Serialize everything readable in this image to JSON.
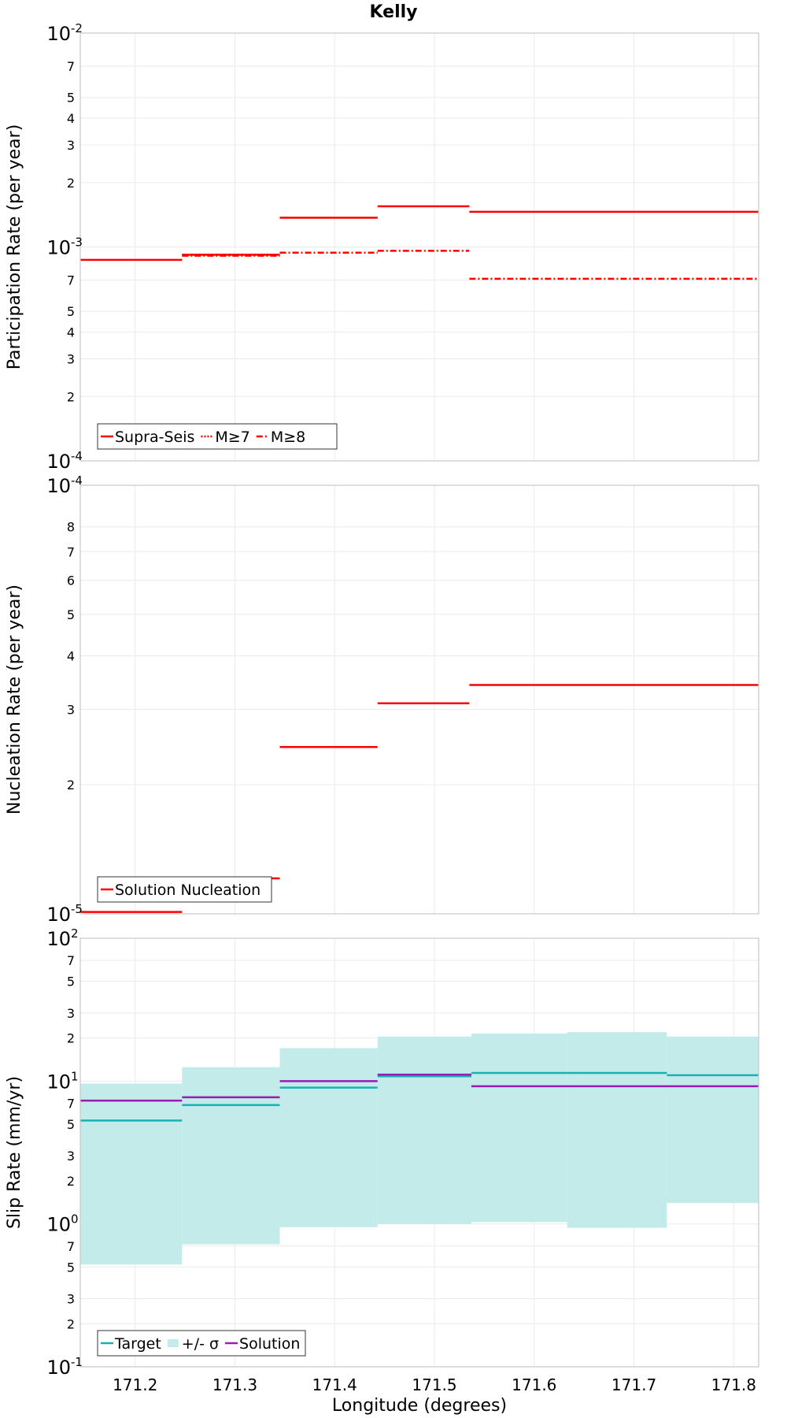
{
  "title": "Kelly",
  "x_axis": {
    "label": "Longitude (degrees)",
    "range": [
      171.145,
      171.825
    ],
    "ticks": [
      "171.2",
      "171.3",
      "171.4",
      "171.5",
      "171.6",
      "171.7",
      "171.8"
    ]
  },
  "chart_data": [
    {
      "type": "line",
      "name": "participation",
      "ylabel": "Participation Rate (per year)",
      "yscale": "log",
      "ylim": [
        0.0001,
        0.01
      ],
      "y_major_ticks": [
        {
          "mantissa": "10",
          "exp": "-4",
          "v": 0.0001
        },
        {
          "mantissa": "10",
          "exp": "-3",
          "v": 0.001
        },
        {
          "mantissa": "10",
          "exp": "-2",
          "v": 0.01
        }
      ],
      "y_minor_ticks": [
        {
          "label": "2",
          "v": 0.0002
        },
        {
          "label": "3",
          "v": 0.0003
        },
        {
          "label": "4",
          "v": 0.0004
        },
        {
          "label": "5",
          "v": 0.0005
        },
        {
          "label": "7",
          "v": 0.0007
        },
        {
          "label": "2",
          "v": 0.002
        },
        {
          "label": "3",
          "v": 0.003
        },
        {
          "label": "4",
          "v": 0.004
        },
        {
          "label": "5",
          "v": 0.005
        },
        {
          "label": "7",
          "v": 0.007
        }
      ],
      "legend_position": "bottom-left",
      "series": [
        {
          "name": "Supra-Seis",
          "style": "solid",
          "color": "#ff0000",
          "segments": [
            [
              171.145,
              171.247,
              0.00087
            ],
            [
              171.247,
              171.345,
              0.00092
            ],
            [
              171.345,
              171.443,
              0.00137
            ],
            [
              171.443,
              171.535,
              0.00155
            ],
            [
              171.535,
              171.825,
              0.00146
            ]
          ]
        },
        {
          "name": "M≥7",
          "style": "dotted",
          "color": "#ff0000",
          "segments": [
            [
              171.247,
              171.345,
              0.00092
            ],
            [
              171.345,
              171.443,
              0.00137
            ]
          ]
        },
        {
          "name": "M≥8",
          "style": "dashdot",
          "color": "#ff0000",
          "segments": [
            [
              171.247,
              171.345,
              0.00091
            ],
            [
              171.345,
              171.443,
              0.00094
            ],
            [
              171.443,
              171.535,
              0.00096
            ],
            [
              171.535,
              171.825,
              0.00071
            ]
          ]
        }
      ]
    },
    {
      "type": "line",
      "name": "nucleation",
      "ylabel": "Nucleation Rate (per year)",
      "yscale": "log",
      "ylim": [
        1e-05,
        0.0001
      ],
      "y_major_ticks": [
        {
          "mantissa": "10",
          "exp": "-5",
          "v": 1e-05
        },
        {
          "mantissa": "10",
          "exp": "-4",
          "v": 0.0001
        }
      ],
      "y_minor_ticks": [
        {
          "label": "2",
          "v": 2e-05
        },
        {
          "label": "3",
          "v": 3e-05
        },
        {
          "label": "4",
          "v": 4e-05
        },
        {
          "label": "5",
          "v": 5e-05
        },
        {
          "label": "6",
          "v": 6e-05
        },
        {
          "label": "7",
          "v": 7e-05
        },
        {
          "label": "8",
          "v": 8e-05
        }
      ],
      "legend_position": "bottom-left",
      "series": [
        {
          "name": "Solution Nucleation",
          "style": "solid",
          "color": "#ff0000",
          "segments": [
            [
              171.145,
              171.247,
              1.01e-05
            ],
            [
              171.247,
              171.345,
              1.21e-05
            ],
            [
              171.345,
              171.443,
              2.45e-05
            ],
            [
              171.443,
              171.535,
              3.1e-05
            ],
            [
              171.535,
              171.825,
              3.42e-05
            ]
          ]
        }
      ]
    },
    {
      "type": "line",
      "name": "slip",
      "ylabel": "Slip Rate (mm/yr)",
      "yscale": "log",
      "ylim": [
        0.1,
        100
      ],
      "y_major_ticks": [
        {
          "mantissa": "10",
          "exp": "-1",
          "v": 0.1
        },
        {
          "mantissa": "10",
          "exp": "0",
          "v": 1
        },
        {
          "mantissa": "10",
          "exp": "1",
          "v": 10
        },
        {
          "mantissa": "10",
          "exp": "2",
          "v": 100
        }
      ],
      "y_minor_ticks": [
        {
          "label": "2",
          "v": 0.2
        },
        {
          "label": "3",
          "v": 0.3
        },
        {
          "label": "5",
          "v": 0.5
        },
        {
          "label": "7",
          "v": 0.7
        },
        {
          "label": "2",
          "v": 2
        },
        {
          "label": "3",
          "v": 3
        },
        {
          "label": "5",
          "v": 5
        },
        {
          "label": "7",
          "v": 7
        },
        {
          "label": "2",
          "v": 20
        },
        {
          "label": "3",
          "v": 30
        },
        {
          "label": "5",
          "v": 50
        },
        {
          "label": "7",
          "v": 70
        }
      ],
      "legend_position": "bottom-left",
      "bands": [
        {
          "name": "+/- σ",
          "color": "#c2ebea",
          "segments": [
            [
              171.145,
              171.247,
              0.52,
              9.6
            ],
            [
              171.247,
              171.345,
              0.72,
              12.5
            ],
            [
              171.345,
              171.443,
              0.95,
              17.0
            ],
            [
              171.443,
              171.537,
              1.0,
              20.5
            ],
            [
              171.537,
              171.633,
              1.03,
              21.5
            ],
            [
              171.633,
              171.733,
              0.94,
              22.0
            ],
            [
              171.733,
              171.825,
              1.4,
              20.5
            ]
          ]
        }
      ],
      "series": [
        {
          "name": "Target",
          "style": "solid",
          "color": "#17b3b3",
          "segments": [
            [
              171.145,
              171.247,
              5.3
            ],
            [
              171.247,
              171.345,
              6.8
            ],
            [
              171.345,
              171.443,
              9.0
            ],
            [
              171.443,
              171.537,
              10.8
            ],
            [
              171.537,
              171.633,
              11.4
            ],
            [
              171.633,
              171.733,
              11.4
            ],
            [
              171.733,
              171.825,
              11.0
            ]
          ]
        },
        {
          "name": "Solution",
          "style": "solid",
          "color": "#9b1ab3",
          "segments": [
            [
              171.145,
              171.247,
              7.3
            ],
            [
              171.247,
              171.345,
              7.7
            ],
            [
              171.345,
              171.443,
              10.0
            ],
            [
              171.443,
              171.537,
              11.1
            ],
            [
              171.537,
              171.825,
              9.2
            ]
          ]
        }
      ]
    }
  ]
}
